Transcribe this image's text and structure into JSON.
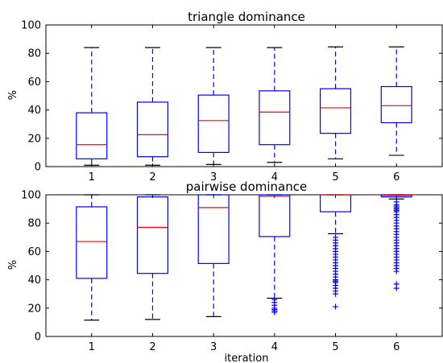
{
  "chart_data": [
    {
      "type": "box",
      "title": "triangle dominance",
      "xlabel": "",
      "ylabel": "%",
      "ylim": [
        0,
        100
      ],
      "yticks": [
        0,
        20,
        40,
        60,
        80,
        100
      ],
      "categories": [
        "1",
        "2",
        "3",
        "4",
        "5",
        "6"
      ],
      "colors": {
        "box": "#0000ff",
        "median": "#ff0000",
        "cap": "#000000",
        "flier": "#0000ff"
      },
      "boxes": [
        {
          "whislo": 1,
          "q1": 5.5,
          "med": 15.5,
          "q3": 38,
          "whishi": 84,
          "fliers": []
        },
        {
          "whislo": 1,
          "q1": 7,
          "med": 22.5,
          "q3": 45.5,
          "whishi": 84,
          "fliers": []
        },
        {
          "whislo": 1.5,
          "q1": 10,
          "med": 32.5,
          "q3": 50.5,
          "whishi": 84,
          "fliers": []
        },
        {
          "whislo": 3,
          "q1": 15.5,
          "med": 38.5,
          "q3": 53.5,
          "whishi": 84,
          "fliers": []
        },
        {
          "whislo": 5.5,
          "q1": 23.5,
          "med": 41.5,
          "q3": 55,
          "whishi": 84.5,
          "fliers": []
        },
        {
          "whislo": 8,
          "q1": 31,
          "med": 43,
          "q3": 56.5,
          "whishi": 84.5,
          "fliers": []
        }
      ]
    },
    {
      "type": "box",
      "title": "pairwise dominance",
      "xlabel": "iteration",
      "ylabel": "%",
      "ylim": [
        0,
        100
      ],
      "yticks": [
        0,
        20,
        40,
        60,
        80,
        100
      ],
      "categories": [
        "1",
        "2",
        "3",
        "4",
        "5",
        "6"
      ],
      "colors": {
        "box": "#0000ff",
        "median": "#ff0000",
        "cap": "#000000",
        "flier": "#0000ff"
      },
      "boxes": [
        {
          "whislo": 11.5,
          "q1": 41,
          "med": 67,
          "q3": 91.5,
          "whishi": 100,
          "fliers": []
        },
        {
          "whislo": 12,
          "q1": 44.5,
          "med": 77,
          "q3": 98.5,
          "whishi": 100,
          "fliers": []
        },
        {
          "whislo": 14,
          "q1": 51.5,
          "med": 91,
          "q3": 100,
          "whishi": 100,
          "fliers": []
        },
        {
          "whislo": 27,
          "q1": 70.5,
          "med": 99,
          "q3": 100,
          "whishi": 100,
          "fliers": [
            26,
            24,
            22,
            20,
            19,
            18,
            17
          ]
        },
        {
          "whislo": 72.5,
          "q1": 88,
          "med": 100,
          "q3": 100,
          "whishi": 100,
          "fliers": [
            70,
            68,
            66,
            64,
            62,
            60,
            58,
            56,
            54,
            52,
            50,
            48,
            46,
            44,
            42,
            40,
            39,
            38,
            36,
            34,
            32,
            30,
            21
          ]
        },
        {
          "whislo": 97,
          "q1": 98.5,
          "med": 99.5,
          "q3": 100,
          "whishi": 100,
          "fliers": [
            95,
            93,
            92,
            91,
            90,
            89,
            88,
            86,
            84,
            82,
            80,
            78,
            76,
            74,
            72,
            70,
            68,
            66,
            64,
            62,
            60,
            58,
            56,
            54,
            52,
            50,
            48,
            46,
            37,
            34
          ]
        }
      ]
    }
  ]
}
